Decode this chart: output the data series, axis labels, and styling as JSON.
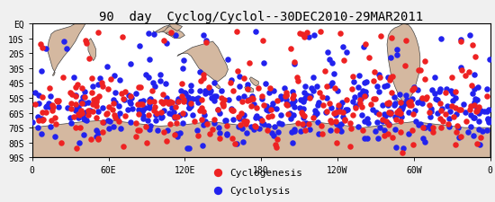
{
  "title": "90  day  Cyclog/Cyclol--30DEC2010-29MAR2011",
  "ocean_color": "#ffffff",
  "land_color": "#d4b8a0",
  "border_color": "#444444",
  "fig_bg": "#f0f0f0",
  "xlim": [
    0,
    360
  ],
  "ylim": [
    -90,
    0
  ],
  "xticks": [
    0,
    60,
    120,
    180,
    240,
    300,
    360
  ],
  "xticklabels": [
    "0",
    "60E",
    "120E",
    "180",
    "120W",
    "60W",
    "0"
  ],
  "yticks": [
    0,
    -10,
    -20,
    -30,
    -40,
    -50,
    -60,
    -70,
    -80,
    -90
  ],
  "yticklabels": [
    "EQ",
    "10S",
    "20S",
    "30S",
    "40S",
    "50S",
    "60S",
    "70S",
    "80S",
    "90S"
  ],
  "legend_labels": [
    "Cyclogenesis",
    "Cyclolysis"
  ],
  "legend_colors": [
    "#ee2222",
    "#2222ee"
  ],
  "dot_size": 22,
  "title_fontsize": 10,
  "tick_fontsize": 7,
  "legend_fontsize": 8,
  "seed_cyc": 42,
  "seed_cycl": 99,
  "n_cyc": 350,
  "n_cycl": 450
}
